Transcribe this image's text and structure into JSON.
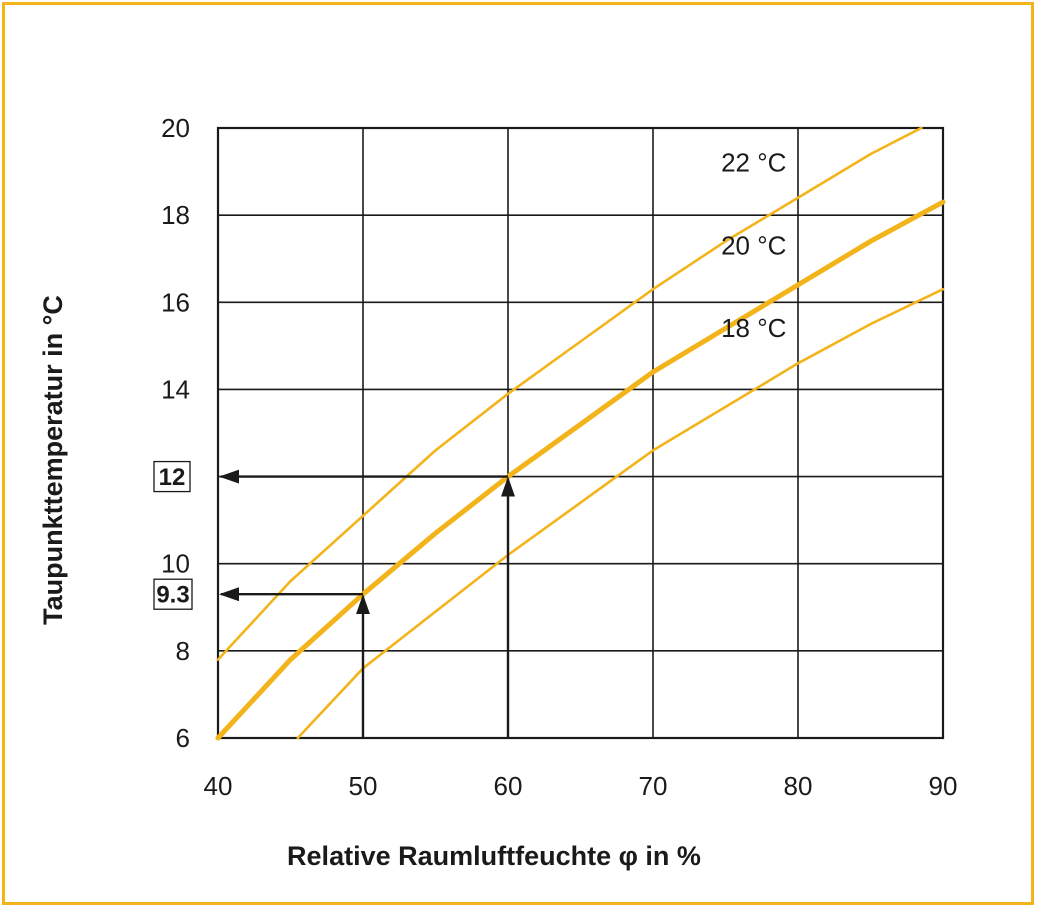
{
  "chart_data": {
    "type": "line",
    "xlabel": "Relative Raumluftfeuchte φ in %",
    "ylabel": "Taupunkttemperatur  in °C",
    "xlim": [
      40,
      90
    ],
    "ylim": [
      6,
      20
    ],
    "x_ticks": [
      40,
      50,
      60,
      70,
      80,
      90
    ],
    "y_ticks": [
      6,
      8,
      10,
      14,
      16,
      18,
      20
    ],
    "grid": true,
    "series": [
      {
        "name": "22 °C",
        "x": [
          40,
          45,
          50,
          55,
          60,
          65,
          70,
          75,
          80,
          85,
          88.5
        ],
        "y": [
          7.8,
          9.6,
          11.1,
          12.6,
          13.9,
          15.1,
          16.3,
          17.4,
          18.4,
          19.4,
          20.0
        ],
        "emphasis": false
      },
      {
        "name": "20 °C",
        "x": [
          40,
          45,
          50,
          55,
          60,
          65,
          70,
          75,
          80,
          85,
          90
        ],
        "y": [
          6.0,
          7.8,
          9.3,
          10.7,
          12.0,
          13.2,
          14.4,
          15.4,
          16.4,
          17.4,
          18.3
        ],
        "emphasis": true
      },
      {
        "name": "18 °C",
        "x": [
          45.5,
          50,
          55,
          60,
          65,
          70,
          75,
          80,
          85,
          90
        ],
        "y": [
          6.0,
          7.6,
          8.9,
          10.2,
          11.4,
          12.6,
          13.6,
          14.6,
          15.5,
          16.3
        ],
        "emphasis": false
      }
    ],
    "annotations": [
      {
        "label": "12",
        "x_from": 60,
        "y_at": 12
      },
      {
        "label": "9.3",
        "x_from": 50,
        "y_at": 9.3
      }
    ],
    "colors": {
      "curves": "#f3b41b",
      "frame": "#f3b41b",
      "grid": "#1a1a1a"
    }
  }
}
